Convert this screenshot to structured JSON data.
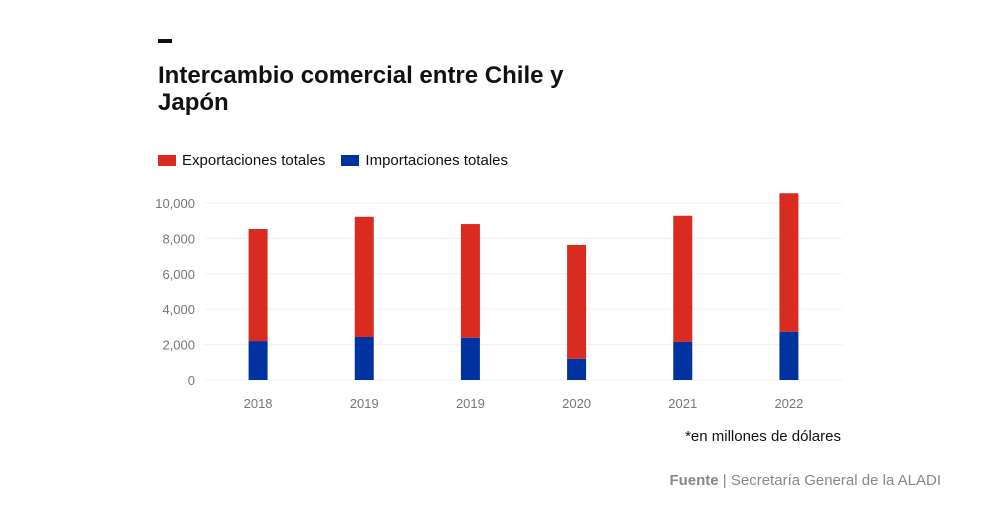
{
  "title": "Intercambio comercial entre Chile y Japón",
  "note": "*en millones de dólares",
  "source": {
    "label": "Fuente",
    "separator": "|",
    "text": "Secretaría General de la ALADI"
  },
  "chart_data": {
    "type": "bar",
    "stacked": true,
    "categories": [
      "2018",
      "2019",
      "2019",
      "2020",
      "2021",
      "2022"
    ],
    "series": [
      {
        "name": "Importaciones totales",
        "color": "#0033a0",
        "values": [
          2200,
          2430,
          2390,
          1200,
          2150,
          2730
        ]
      },
      {
        "name": "Exportaciones totales",
        "color": "#d92b20",
        "values": [
          6330,
          6790,
          6420,
          6430,
          7130,
          7820
        ]
      }
    ],
    "yticks": [
      "0",
      "2,000",
      "4,000",
      "6,000",
      "8,000",
      "10,000"
    ],
    "ylim": [
      0,
      10000
    ],
    "grid": true,
    "legend": "top-left"
  }
}
